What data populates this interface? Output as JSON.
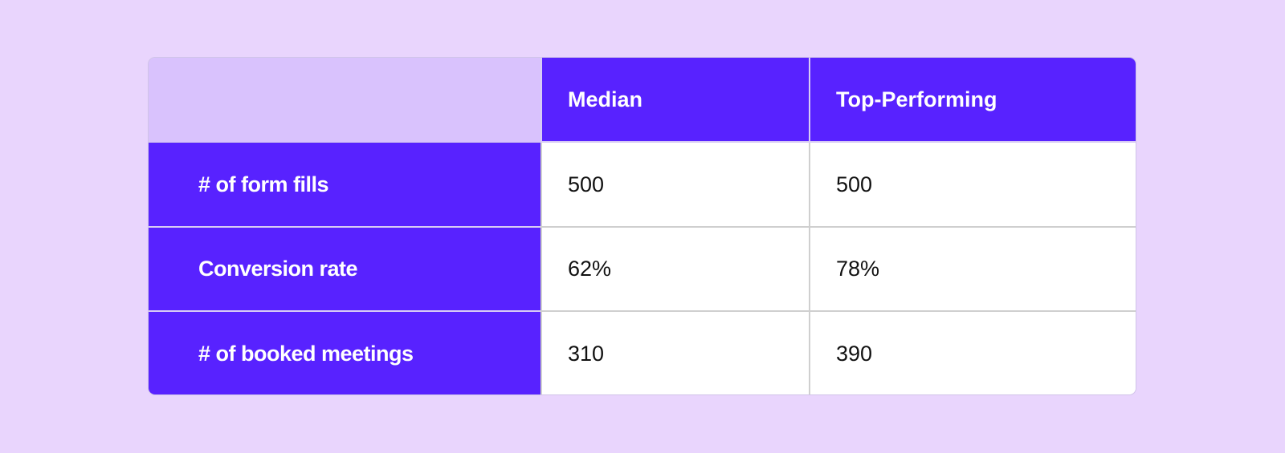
{
  "table": {
    "header": [
      "Median",
      "Top-Performing"
    ],
    "rows": [
      [
        "# of form fills",
        "500",
        "500"
      ],
      [
        "Conversion rate",
        "62%",
        "78%"
      ],
      [
        "# of booked meetings",
        "310",
        "390"
      ]
    ]
  }
}
